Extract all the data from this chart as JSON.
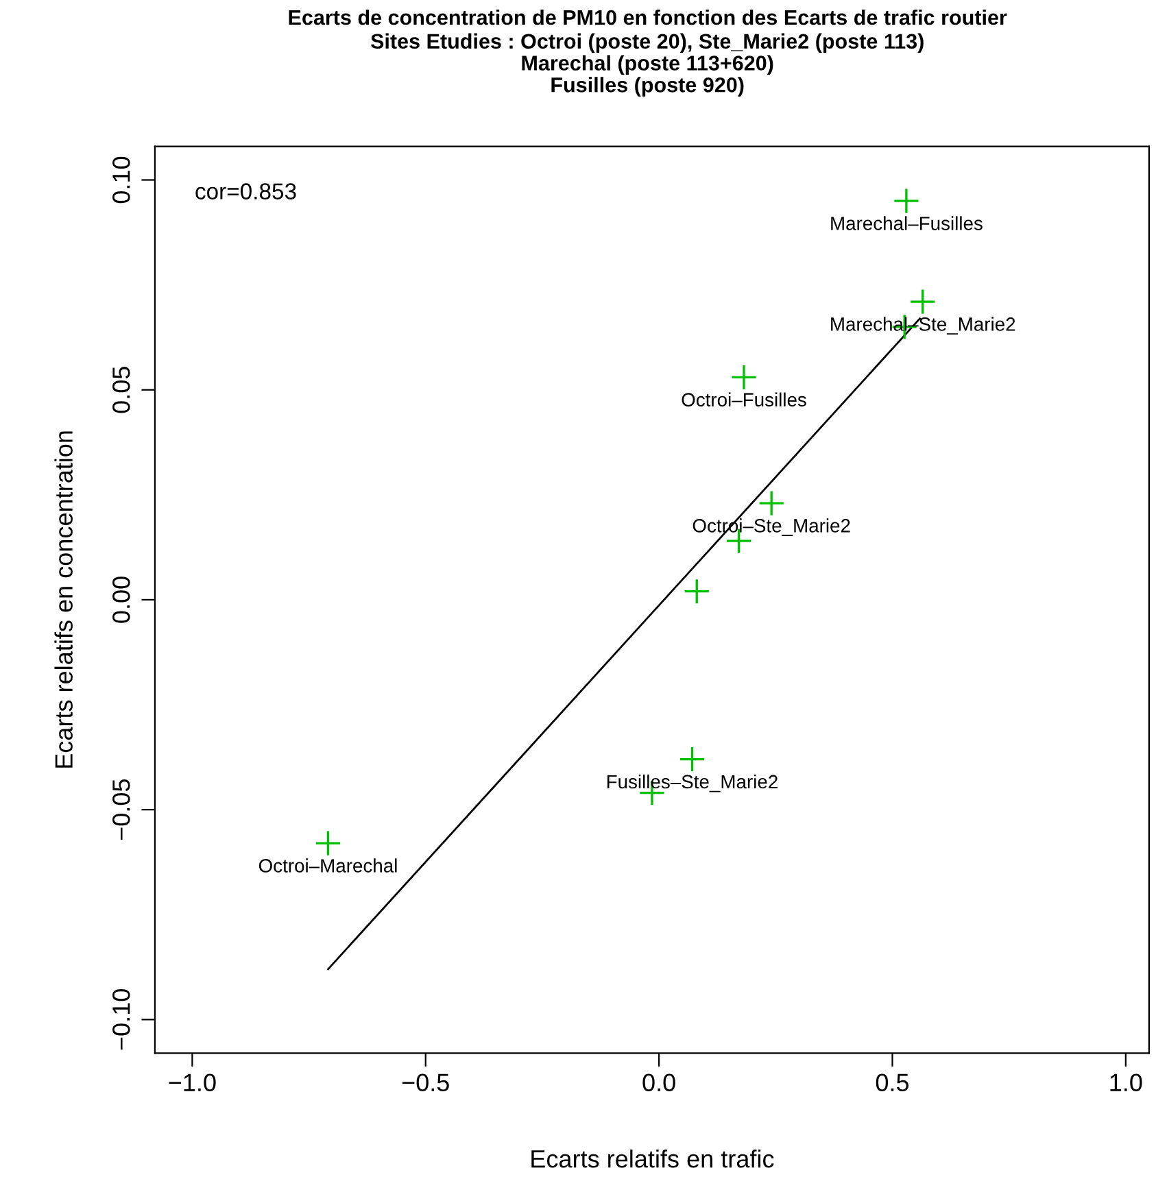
{
  "chart_data": {
    "type": "scatter",
    "title": "Ecarts de concentration de PM10 en fonction des Ecarts de trafic routier",
    "subtitle": "Sites Etudies : Octroi (poste 20), Ste_Marie2 (poste 113)\nMarechal (poste 113+620)\nFusilles (poste 920)",
    "xlabel": "Ecarts relatifs en trafic",
    "ylabel": "Ecarts relatifs en concentration",
    "series": [
      {
        "color": "#00c000",
        "marker": "cross",
        "x": [
          0.53,
          0.565,
          0.526,
          0.182,
          0.241,
          0.171,
          0.081,
          0.071,
          -0.015,
          -0.709
        ],
        "values": [
          0.095,
          0.071,
          0.065,
          0.053,
          0.023,
          0.014,
          0.002,
          -0.038,
          -0.046,
          -0.058
        ]
      },
      {
        "type": "line",
        "color": "#000000",
        "line_style": "solid",
        "x": [
          -0.709,
          0.559
        ],
        "values": [
          -0.088,
          0.067
        ]
      }
    ],
    "annotations": [
      "cor=0.853",
      {
        "text": "Marechal–Fusilles",
        "x": 0.53,
        "y": 0.095
      },
      {
        "text": "Marechal–Ste_Marie2",
        "x": 0.565,
        "y": 0.071
      },
      {
        "text": "Octroi–Fusilles",
        "x": 0.182,
        "y": 0.053
      },
      {
        "text": "Octroi–Ste_Marie2",
        "x": 0.241,
        "y": 0.023
      },
      {
        "text": "Fusilles–Ste_Marie2",
        "x": 0.071,
        "y": -0.038
      },
      {
        "text": "Octroi–Marechal",
        "x": -0.709,
        "y": -0.058
      }
    ],
    "xlim": [
      -1.08,
      1.05
    ],
    "ylim": [
      -0.108,
      0.108
    ],
    "xticks": [
      {
        "value": -1.0,
        "label": "−1.0"
      },
      {
        "value": -0.5,
        "label": "−0.5"
      },
      {
        "value": 0.0,
        "label": "0.0"
      },
      {
        "value": 0.5,
        "label": "0.5"
      },
      {
        "value": 1.0,
        "label": "1.0"
      }
    ],
    "yticks": [
      {
        "value": -0.1,
        "label": "−0.10"
      },
      {
        "value": -0.05,
        "label": "−0.05"
      },
      {
        "value": 0.0,
        "label": "0.00"
      },
      {
        "value": 0.05,
        "label": "0.05"
      },
      {
        "value": 0.1,
        "label": "0.10"
      }
    ],
    "grid": false,
    "legend": false
  }
}
